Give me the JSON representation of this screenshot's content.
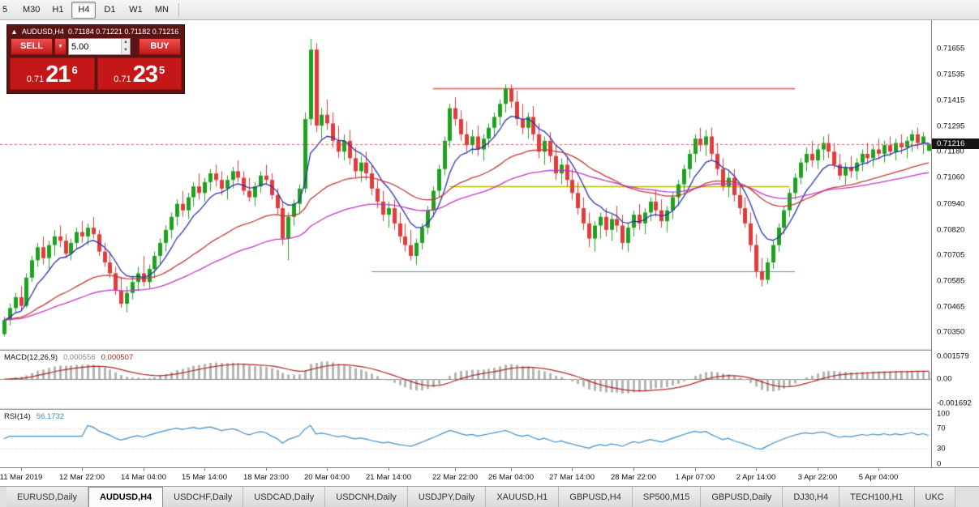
{
  "toolbar": {
    "timeframes": [
      {
        "label": "5",
        "active": false
      },
      {
        "label": "M30",
        "active": false
      },
      {
        "label": "H1",
        "active": false
      },
      {
        "label": "H4",
        "active": true
      },
      {
        "label": "D1",
        "active": false
      },
      {
        "label": "W1",
        "active": false
      },
      {
        "label": "MN",
        "active": false
      }
    ]
  },
  "trade_panel": {
    "collapse_icon": "▲",
    "symbol": "AUDUSD,H4",
    "ohlc_text": "0.71184 0.71221 0.71182 0.71216",
    "sell_label": "SELL",
    "buy_label": "BUY",
    "dropdown_icon": "▼",
    "volume": "5.00",
    "spin_up": "▲",
    "spin_down": "▼",
    "sell_price": {
      "prefix": "0.71",
      "big": "21",
      "sup": "6"
    },
    "buy_price": {
      "prefix": "0.71",
      "big": "23",
      "sup": "5"
    }
  },
  "chart_data": {
    "type": "candlestick",
    "symbol": "AUDUSD",
    "timeframe": "H4",
    "ohlc_current": {
      "open": 0.71184,
      "high": 0.71221,
      "low": 0.71182,
      "close": 0.71216
    },
    "current_price": "0.71216",
    "ylim": [
      0.70275,
      0.71785
    ],
    "price_axis": [
      "0.71655",
      "0.71535",
      "0.71415",
      "0.71295",
      "0.71180",
      "0.71060",
      "0.70940",
      "0.70820",
      "0.70705",
      "0.70585",
      "0.70465",
      "0.70350"
    ],
    "colors": {
      "up": "#1fa11f",
      "down": "#e23b3b",
      "bid_line": "#f25555",
      "macd_hist": "#b4b4b4",
      "macd_signal": "#b22222",
      "rsi_line": "#3f8cc8"
    },
    "mas": [
      {
        "name": "fast-ma",
        "period": 8,
        "color": "#2830b0"
      },
      {
        "name": "mid-ma",
        "period": 34,
        "color": "#c43636"
      },
      {
        "name": "slow-ma",
        "period": 62,
        "color": "#c233c2"
      }
    ],
    "hlines": [
      {
        "name": "resistance-line",
        "price": 0.7147,
        "from": 77,
        "to": 142,
        "color": "#ff4a4a",
        "width": 1.6
      },
      {
        "name": "pivot-line",
        "price": 0.7102,
        "from": 80,
        "to": 141,
        "color": "#b8b800",
        "width": 1.6
      },
      {
        "name": "support-line",
        "price": 0.7063,
        "from": 66,
        "to": 142,
        "color": "#2aa8a8",
        "width": 1.2
      }
    ],
    "date_labels": [
      {
        "text": "11 Mar 2019",
        "i": 3
      },
      {
        "text": "12 Mar 22:00",
        "i": 14
      },
      {
        "text": "14 Mar 04:00",
        "i": 25
      },
      {
        "text": "15 Mar 14:00",
        "i": 36
      },
      {
        "text": "18 Mar 23:00",
        "i": 47
      },
      {
        "text": "20 Mar 04:00",
        "i": 58
      },
      {
        "text": "21 Mar 14:00",
        "i": 69
      },
      {
        "text": "22 Mar 22:00",
        "i": 81
      },
      {
        "text": "26 Mar 04:00",
        "i": 91
      },
      {
        "text": "27 Mar 14:00",
        "i": 102
      },
      {
        "text": "28 Mar 22:00",
        "i": 113
      },
      {
        "text": "1 Apr 07:00",
        "i": 124
      },
      {
        "text": "2 Apr 14:00",
        "i": 135
      },
      {
        "text": "3 Apr 22:00",
        "i": 146
      },
      {
        "text": "5 Apr 04:00",
        "i": 157
      }
    ],
    "indicators": {
      "macd": {
        "label": "MACD(12,26,9)",
        "value_main": "0.000556",
        "value_signal": "0.000507",
        "axis": [
          {
            "text": "0.001579",
            "value": 0.001579
          },
          {
            "text": "0.00",
            "value": 0
          },
          {
            "text": "-0.001692",
            "value": -0.001692
          }
        ]
      },
      "rsi": {
        "label": "RSI(14)",
        "value": "56.1732",
        "levels": [
          70,
          30
        ],
        "axis": [
          {
            "text": "100",
            "value": 100
          },
          {
            "text": "70",
            "value": 70
          },
          {
            "text": "30",
            "value": 30
          },
          {
            "text": "0",
            "value": 0
          }
        ]
      }
    },
    "candles": [
      [
        0.7034,
        0.7042,
        0.7033,
        0.70405
      ],
      [
        0.70405,
        0.7048,
        0.7038,
        0.7046
      ],
      [
        0.7046,
        0.7053,
        0.7044,
        0.7051
      ],
      [
        0.7051,
        0.7056,
        0.7045,
        0.7047
      ],
      [
        0.7047,
        0.7062,
        0.7046,
        0.706
      ],
      [
        0.706,
        0.707,
        0.7058,
        0.7068
      ],
      [
        0.7068,
        0.7076,
        0.7065,
        0.7074
      ],
      [
        0.7074,
        0.7079,
        0.7066,
        0.7069
      ],
      [
        0.7069,
        0.7077,
        0.7064,
        0.7075
      ],
      [
        0.7075,
        0.7082,
        0.707,
        0.7079
      ],
      [
        0.7079,
        0.7084,
        0.7074,
        0.7077
      ],
      [
        0.7077,
        0.708,
        0.7069,
        0.7071
      ],
      [
        0.7071,
        0.7078,
        0.7068,
        0.7076
      ],
      [
        0.7076,
        0.7083,
        0.7073,
        0.7081
      ],
      [
        0.7081,
        0.7086,
        0.7076,
        0.7079
      ],
      [
        0.7079,
        0.7085,
        0.7075,
        0.7083
      ],
      [
        0.7083,
        0.7088,
        0.7078,
        0.708
      ],
      [
        0.708,
        0.7082,
        0.707,
        0.7072
      ],
      [
        0.7072,
        0.7076,
        0.7065,
        0.7067
      ],
      [
        0.7067,
        0.7072,
        0.706,
        0.7062
      ],
      [
        0.7062,
        0.7065,
        0.7052,
        0.7054
      ],
      [
        0.7054,
        0.706,
        0.7046,
        0.7048
      ],
      [
        0.7048,
        0.7056,
        0.7044,
        0.7053
      ],
      [
        0.7053,
        0.7061,
        0.705,
        0.7058
      ],
      [
        0.7058,
        0.7065,
        0.7054,
        0.7062
      ],
      [
        0.7062,
        0.707,
        0.7056,
        0.7058
      ],
      [
        0.7058,
        0.7066,
        0.7055,
        0.7064
      ],
      [
        0.7064,
        0.7072,
        0.706,
        0.707
      ],
      [
        0.707,
        0.7078,
        0.7066,
        0.7076
      ],
      [
        0.7076,
        0.7084,
        0.7072,
        0.7082
      ],
      [
        0.7082,
        0.709,
        0.7078,
        0.7088
      ],
      [
        0.7088,
        0.7096,
        0.7084,
        0.7094
      ],
      [
        0.7094,
        0.71,
        0.7088,
        0.7091
      ],
      [
        0.7091,
        0.7099,
        0.7087,
        0.7097
      ],
      [
        0.7097,
        0.7104,
        0.7093,
        0.7102
      ],
      [
        0.7102,
        0.7108,
        0.7096,
        0.7099
      ],
      [
        0.7099,
        0.7106,
        0.7095,
        0.7104
      ],
      [
        0.7104,
        0.711,
        0.71,
        0.7108
      ],
      [
        0.7108,
        0.7112,
        0.7102,
        0.7105
      ],
      [
        0.7105,
        0.7109,
        0.7098,
        0.7101
      ],
      [
        0.7101,
        0.7107,
        0.7096,
        0.7105
      ],
      [
        0.7105,
        0.7111,
        0.7101,
        0.7109
      ],
      [
        0.7109,
        0.7114,
        0.7104,
        0.7106
      ],
      [
        0.7106,
        0.7109,
        0.7098,
        0.71
      ],
      [
        0.71,
        0.7106,
        0.7095,
        0.7097
      ],
      [
        0.7097,
        0.7104,
        0.7093,
        0.7102
      ],
      [
        0.7102,
        0.7109,
        0.7099,
        0.7107
      ],
      [
        0.7107,
        0.7112,
        0.7103,
        0.7105
      ],
      [
        0.7105,
        0.7108,
        0.7096,
        0.7098
      ],
      [
        0.7098,
        0.7101,
        0.7089,
        0.7092
      ],
      [
        0.7092,
        0.7095,
        0.7075,
        0.7078
      ],
      [
        0.7078,
        0.709,
        0.7068,
        0.7088
      ],
      [
        0.7088,
        0.7096,
        0.7084,
        0.7094
      ],
      [
        0.7094,
        0.7103,
        0.709,
        0.7101
      ],
      [
        0.7101,
        0.7136,
        0.7099,
        0.7133
      ],
      [
        0.7133,
        0.717,
        0.713,
        0.7165
      ],
      [
        0.7165,
        0.7168,
        0.7127,
        0.713
      ],
      [
        0.713,
        0.7138,
        0.7124,
        0.7135
      ],
      [
        0.7135,
        0.7142,
        0.7128,
        0.7131
      ],
      [
        0.7131,
        0.7136,
        0.712,
        0.7123
      ],
      [
        0.7123,
        0.713,
        0.7115,
        0.7118
      ],
      [
        0.7118,
        0.7126,
        0.7114,
        0.7123
      ],
      [
        0.7123,
        0.7128,
        0.7112,
        0.7115
      ],
      [
        0.7115,
        0.712,
        0.7106,
        0.7109
      ],
      [
        0.7109,
        0.7116,
        0.7104,
        0.7113
      ],
      [
        0.7113,
        0.7118,
        0.7105,
        0.7108
      ],
      [
        0.7108,
        0.7112,
        0.7098,
        0.7101
      ],
      [
        0.7101,
        0.7105,
        0.7092,
        0.7095
      ],
      [
        0.7095,
        0.71,
        0.7086,
        0.7089
      ],
      [
        0.7089,
        0.7095,
        0.7083,
        0.7092
      ],
      [
        0.7092,
        0.7096,
        0.7082,
        0.7085
      ],
      [
        0.7085,
        0.709,
        0.7076,
        0.7079
      ],
      [
        0.7079,
        0.7085,
        0.7072,
        0.7075
      ],
      [
        0.7075,
        0.7082,
        0.7068,
        0.707
      ],
      [
        0.707,
        0.7078,
        0.7066,
        0.7076
      ],
      [
        0.7076,
        0.7085,
        0.7073,
        0.7083
      ],
      [
        0.7083,
        0.7093,
        0.708,
        0.7091
      ],
      [
        0.7091,
        0.7102,
        0.7088,
        0.71
      ],
      [
        0.71,
        0.7112,
        0.7097,
        0.711
      ],
      [
        0.711,
        0.7125,
        0.7107,
        0.7123
      ],
      [
        0.7123,
        0.714,
        0.712,
        0.7138
      ],
      [
        0.7138,
        0.7143,
        0.713,
        0.7133
      ],
      [
        0.7133,
        0.7137,
        0.7123,
        0.7126
      ],
      [
        0.7126,
        0.7132,
        0.7118,
        0.7121
      ],
      [
        0.7121,
        0.7128,
        0.7117,
        0.7125
      ],
      [
        0.7125,
        0.713,
        0.7116,
        0.7119
      ],
      [
        0.7119,
        0.7126,
        0.7114,
        0.7124
      ],
      [
        0.7124,
        0.7131,
        0.712,
        0.7129
      ],
      [
        0.7129,
        0.7136,
        0.7125,
        0.7134
      ],
      [
        0.7134,
        0.7142,
        0.713,
        0.714
      ],
      [
        0.714,
        0.7149,
        0.7136,
        0.7147
      ],
      [
        0.7147,
        0.7149,
        0.7138,
        0.7141
      ],
      [
        0.7141,
        0.7146,
        0.713,
        0.7133
      ],
      [
        0.7133,
        0.714,
        0.7126,
        0.7129
      ],
      [
        0.7129,
        0.7136,
        0.7124,
        0.7134
      ],
      [
        0.7134,
        0.7139,
        0.7123,
        0.7126
      ],
      [
        0.7126,
        0.7131,
        0.7115,
        0.7118
      ],
      [
        0.7118,
        0.7125,
        0.7112,
        0.7123
      ],
      [
        0.7123,
        0.7127,
        0.7113,
        0.7116
      ],
      [
        0.7116,
        0.7121,
        0.7105,
        0.7108
      ],
      [
        0.7108,
        0.7115,
        0.7103,
        0.7112
      ],
      [
        0.7112,
        0.7116,
        0.7102,
        0.7105
      ],
      [
        0.7105,
        0.711,
        0.7096,
        0.7099
      ],
      [
        0.7099,
        0.7104,
        0.7089,
        0.7092
      ],
      [
        0.7092,
        0.7097,
        0.7082,
        0.7085
      ],
      [
        0.7085,
        0.709,
        0.7074,
        0.7078
      ],
      [
        0.7078,
        0.7086,
        0.7072,
        0.7084
      ],
      [
        0.7084,
        0.709,
        0.7078,
        0.7088
      ],
      [
        0.7088,
        0.7092,
        0.7079,
        0.7082
      ],
      [
        0.7082,
        0.7089,
        0.7077,
        0.7087
      ],
      [
        0.7087,
        0.7093,
        0.7081,
        0.7084
      ],
      [
        0.7084,
        0.7089,
        0.7073,
        0.7076
      ],
      [
        0.7076,
        0.7085,
        0.7072,
        0.7083
      ],
      [
        0.7083,
        0.7091,
        0.7079,
        0.7089
      ],
      [
        0.7089,
        0.7094,
        0.7082,
        0.7085
      ],
      [
        0.7085,
        0.7092,
        0.708,
        0.709
      ],
      [
        0.709,
        0.7097,
        0.7086,
        0.7095
      ],
      [
        0.7095,
        0.71,
        0.7088,
        0.7091
      ],
      [
        0.7091,
        0.7096,
        0.7083,
        0.7086
      ],
      [
        0.7086,
        0.7093,
        0.7081,
        0.7091
      ],
      [
        0.7091,
        0.7099,
        0.7087,
        0.7097
      ],
      [
        0.7097,
        0.7105,
        0.7093,
        0.7103
      ],
      [
        0.7103,
        0.7112,
        0.7099,
        0.711
      ],
      [
        0.711,
        0.7119,
        0.7106,
        0.7117
      ],
      [
        0.7117,
        0.7126,
        0.7113,
        0.7124
      ],
      [
        0.7124,
        0.7129,
        0.7118,
        0.7121
      ],
      [
        0.7121,
        0.7128,
        0.7116,
        0.7125
      ],
      [
        0.7125,
        0.7129,
        0.7114,
        0.7117
      ],
      [
        0.7117,
        0.7122,
        0.7107,
        0.711
      ],
      [
        0.711,
        0.7115,
        0.71,
        0.7102
      ],
      [
        0.7102,
        0.7109,
        0.7097,
        0.7106
      ],
      [
        0.7106,
        0.711,
        0.7095,
        0.7098
      ],
      [
        0.7098,
        0.7103,
        0.7089,
        0.7092
      ],
      [
        0.7092,
        0.7097,
        0.7083,
        0.7085
      ],
      [
        0.7085,
        0.709,
        0.7072,
        0.7075
      ],
      [
        0.7075,
        0.708,
        0.706,
        0.7063
      ],
      [
        0.7063,
        0.7069,
        0.7056,
        0.7059
      ],
      [
        0.7059,
        0.7069,
        0.7057,
        0.7067
      ],
      [
        0.7067,
        0.7077,
        0.7064,
        0.7075
      ],
      [
        0.7075,
        0.7085,
        0.7072,
        0.7083
      ],
      [
        0.7083,
        0.7093,
        0.708,
        0.7091
      ],
      [
        0.7091,
        0.7101,
        0.7088,
        0.7099
      ],
      [
        0.7099,
        0.7108,
        0.7096,
        0.7106
      ],
      [
        0.7106,
        0.7115,
        0.7103,
        0.7113
      ],
      [
        0.7113,
        0.712,
        0.7109,
        0.7117
      ],
      [
        0.7117,
        0.7123,
        0.7111,
        0.7114
      ],
      [
        0.7114,
        0.7121,
        0.711,
        0.7119
      ],
      [
        0.7119,
        0.7125,
        0.7114,
        0.7122
      ],
      [
        0.7122,
        0.7126,
        0.7115,
        0.7118
      ],
      [
        0.7118,
        0.7122,
        0.711,
        0.7112
      ],
      [
        0.7112,
        0.7117,
        0.7105,
        0.7107
      ],
      [
        0.7107,
        0.7113,
        0.7103,
        0.7111
      ],
      [
        0.7111,
        0.7116,
        0.7106,
        0.7109
      ],
      [
        0.7109,
        0.7115,
        0.7105,
        0.7113
      ],
      [
        0.7113,
        0.7119,
        0.7109,
        0.7117
      ],
      [
        0.7117,
        0.7122,
        0.7112,
        0.7115
      ],
      [
        0.7115,
        0.7121,
        0.7111,
        0.7119
      ],
      [
        0.7119,
        0.7124,
        0.7115,
        0.7117
      ],
      [
        0.7117,
        0.7123,
        0.7113,
        0.7121
      ],
      [
        0.7121,
        0.7125,
        0.7116,
        0.7118
      ],
      [
        0.7118,
        0.7124,
        0.7114,
        0.7122
      ],
      [
        0.7122,
        0.7126,
        0.7117,
        0.712
      ],
      [
        0.712,
        0.7125,
        0.7115,
        0.7123
      ],
      [
        0.7123,
        0.7128,
        0.7118,
        0.7126
      ],
      [
        0.7126,
        0.7129,
        0.7119,
        0.7122
      ],
      [
        0.7122,
        0.7127,
        0.7117,
        0.7125
      ],
      [
        0.71184,
        0.71221,
        0.71182,
        0.71216
      ]
    ]
  },
  "tabs": [
    {
      "label": "EURUSD,Daily",
      "active": false
    },
    {
      "label": "AUDUSD,H4",
      "active": true
    },
    {
      "label": "USDCHF,Daily",
      "active": false
    },
    {
      "label": "USDCAD,Daily",
      "active": false
    },
    {
      "label": "USDCNH,Daily",
      "active": false
    },
    {
      "label": "USDJPY,Daily",
      "active": false
    },
    {
      "label": "XAUUSD,H1",
      "active": false
    },
    {
      "label": "GBPUSD,H4",
      "active": false
    },
    {
      "label": "SP500,M15",
      "active": false
    },
    {
      "label": "GBPUSD,Daily",
      "active": false
    },
    {
      "label": "DJ30,H4",
      "active": false
    },
    {
      "label": "TECH100,H1",
      "active": false
    },
    {
      "label": "UKC",
      "active": false
    }
  ]
}
